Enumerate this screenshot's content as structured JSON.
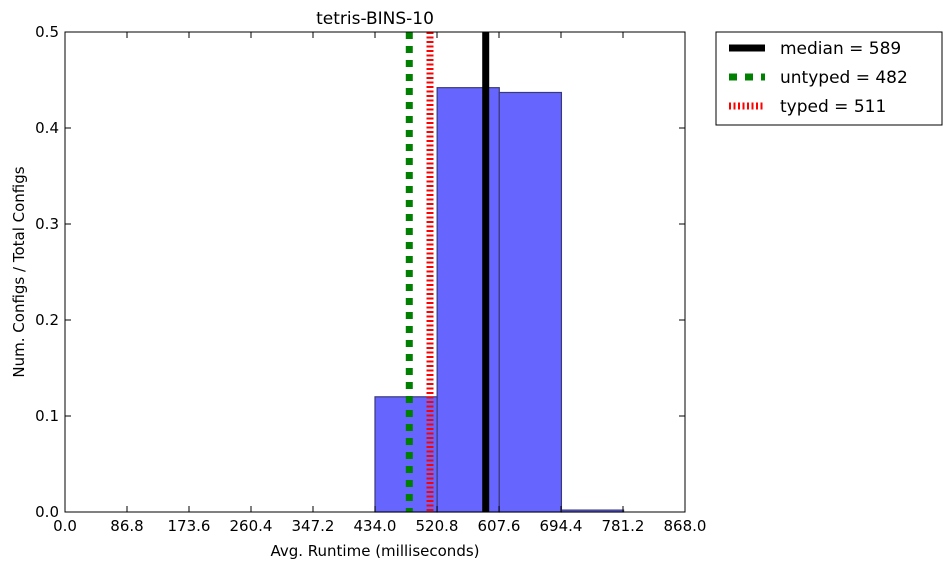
{
  "chart_data": {
    "type": "bar",
    "title": "tetris-BINS-10",
    "xlabel": "Avg. Runtime (milliseconds)",
    "ylabel": "Num. Configs / Total Configs",
    "xlim": [
      0,
      868
    ],
    "ylim": [
      0,
      0.5
    ],
    "x_ticks": [
      0,
      86.8,
      173.6,
      260.4,
      347.2,
      434.0,
      520.8,
      607.6,
      694.4,
      781.2,
      868.0
    ],
    "x_tick_labels": [
      "0.0",
      "86.8",
      "173.6",
      "260.4",
      "347.2",
      "434.0",
      "520.8",
      "607.6",
      "694.4",
      "781.2",
      "868.0"
    ],
    "y_ticks": [
      0.0,
      0.1,
      0.2,
      0.3,
      0.4,
      0.5
    ],
    "y_tick_labels": [
      "0.0",
      "0.1",
      "0.2",
      "0.3",
      "0.4",
      "0.5"
    ],
    "bars": [
      {
        "x0": 434.0,
        "x1": 521.0,
        "value": 0.12
      },
      {
        "x0": 521.0,
        "x1": 608.0,
        "value": 0.442
      },
      {
        "x0": 608.0,
        "x1": 695.0,
        "value": 0.437
      },
      {
        "x0": 695.0,
        "x1": 782.0,
        "value": 0.002
      }
    ],
    "bar_color": "#6666ff",
    "grid": false,
    "legend_position": "outside top-right",
    "vlines": [
      {
        "label": "median = 589",
        "x": 589,
        "color": "#000000",
        "style": "solid"
      },
      {
        "label": "untyped = 482",
        "x": 482,
        "color": "#008000",
        "style": "dashed"
      },
      {
        "label": "typed = 511",
        "x": 511,
        "color": "#ff0000",
        "style": "dotted"
      }
    ]
  }
}
